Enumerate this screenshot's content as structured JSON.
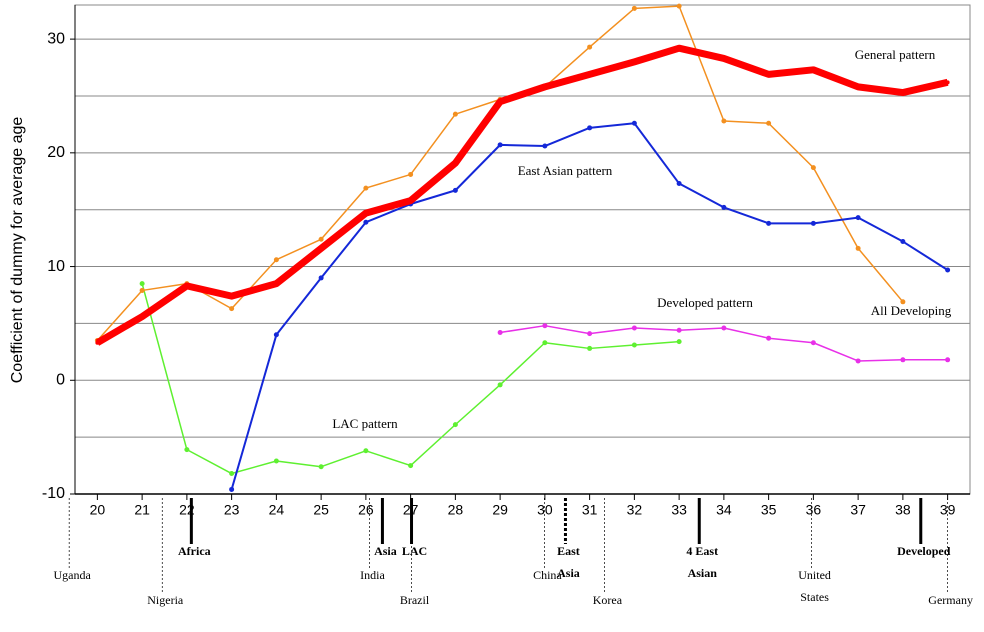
{
  "chart_data": {
    "type": "line",
    "y_label": "Coefficient of dummy for average age",
    "x": [
      20,
      21,
      22,
      23,
      24,
      25,
      26,
      27,
      28,
      29,
      30,
      31,
      32,
      33,
      34,
      35,
      36,
      37,
      38,
      39
    ],
    "xlim": [
      19.5,
      39.5
    ],
    "xticks": [
      20,
      21,
      22,
      23,
      24,
      25,
      26,
      27,
      28,
      29,
      30,
      31,
      32,
      33,
      34,
      35,
      36,
      37,
      38,
      39
    ],
    "ylim": [
      -10,
      33
    ],
    "yticks": [
      -10,
      0,
      10,
      20,
      30
    ],
    "minor_gridlines": [
      -5,
      5,
      15,
      25
    ],
    "grid": true,
    "series": [
      {
        "name": "General pattern",
        "color": "#ff0000",
        "values": [
          3.3,
          5.6,
          8.3,
          7.4,
          8.5,
          11.6,
          14.7,
          15.8,
          19.1,
          24.5,
          25.8,
          26.9,
          28.0,
          29.2,
          28.3,
          26.9,
          27.3,
          25.8,
          25.3,
          26.2
        ]
      },
      {
        "name": "All Developing",
        "color": "#f39020",
        "values": [
          3.5,
          7.9,
          8.5,
          6.3,
          10.6,
          12.4,
          16.9,
          18.1,
          23.4,
          24.7,
          25.8,
          29.3,
          32.7,
          32.9,
          22.8,
          22.6,
          18.7,
          11.6,
          6.9,
          null
        ]
      },
      {
        "name": "East Asian pattern",
        "color": "#1428d8",
        "values": [
          null,
          null,
          null,
          -9.6,
          4.0,
          9.0,
          13.9,
          15.5,
          16.7,
          20.7,
          20.6,
          22.2,
          22.6,
          17.3,
          15.2,
          13.8,
          13.8,
          14.3,
          12.2,
          9.7
        ]
      },
      {
        "name": "Developed pattern",
        "color": "#e830e8",
        "values": [
          null,
          null,
          null,
          null,
          null,
          null,
          null,
          null,
          null,
          4.2,
          4.8,
          4.1,
          4.6,
          4.4,
          4.6,
          3.7,
          3.3,
          1.7,
          1.8,
          1.8
        ]
      },
      {
        "name": "LAC pattern",
        "color": "#5ef030",
        "values": [
          null,
          8.5,
          -6.1,
          -8.2,
          -7.1,
          -7.6,
          -6.2,
          -7.5,
          -3.9,
          -0.4,
          3.3,
          2.8,
          3.1,
          3.4,
          null,
          null,
          null,
          null,
          null,
          null
        ]
      }
    ],
    "annotations": [
      {
        "lines": [
          "Uganda"
        ],
        "x": 19.37
      },
      {
        "lines": [
          "Nigeria"
        ],
        "x": 21.45
      },
      {
        "lines": [
          "India"
        ],
        "x": 26.08
      },
      {
        "lines": [
          "Brazil"
        ],
        "x": 27.02
      },
      {
        "lines": [
          "China"
        ],
        "x": 29.99
      },
      {
        "lines": [
          "Korea"
        ],
        "x": 31.33
      },
      {
        "lines": [
          "United",
          "States"
        ],
        "x": 35.96
      },
      {
        "lines": [
          "Germany"
        ],
        "x": 39.0
      },
      {
        "lines": [
          "Africa"
        ],
        "x": 22.1,
        "region": true
      },
      {
        "lines": [
          "Asia"
        ],
        "x": 26.37,
        "region": true
      },
      {
        "lines": [
          "LAC"
        ],
        "x": 27.02,
        "region": true
      },
      {
        "lines": [
          "East",
          "Asia"
        ],
        "x": 30.46,
        "region": true,
        "dashed": true
      },
      {
        "lines": [
          "4 East",
          "Asian"
        ],
        "x": 33.45,
        "region": true
      },
      {
        "lines": [
          "Developed"
        ],
        "x": 38.4,
        "region": true
      }
    ]
  }
}
